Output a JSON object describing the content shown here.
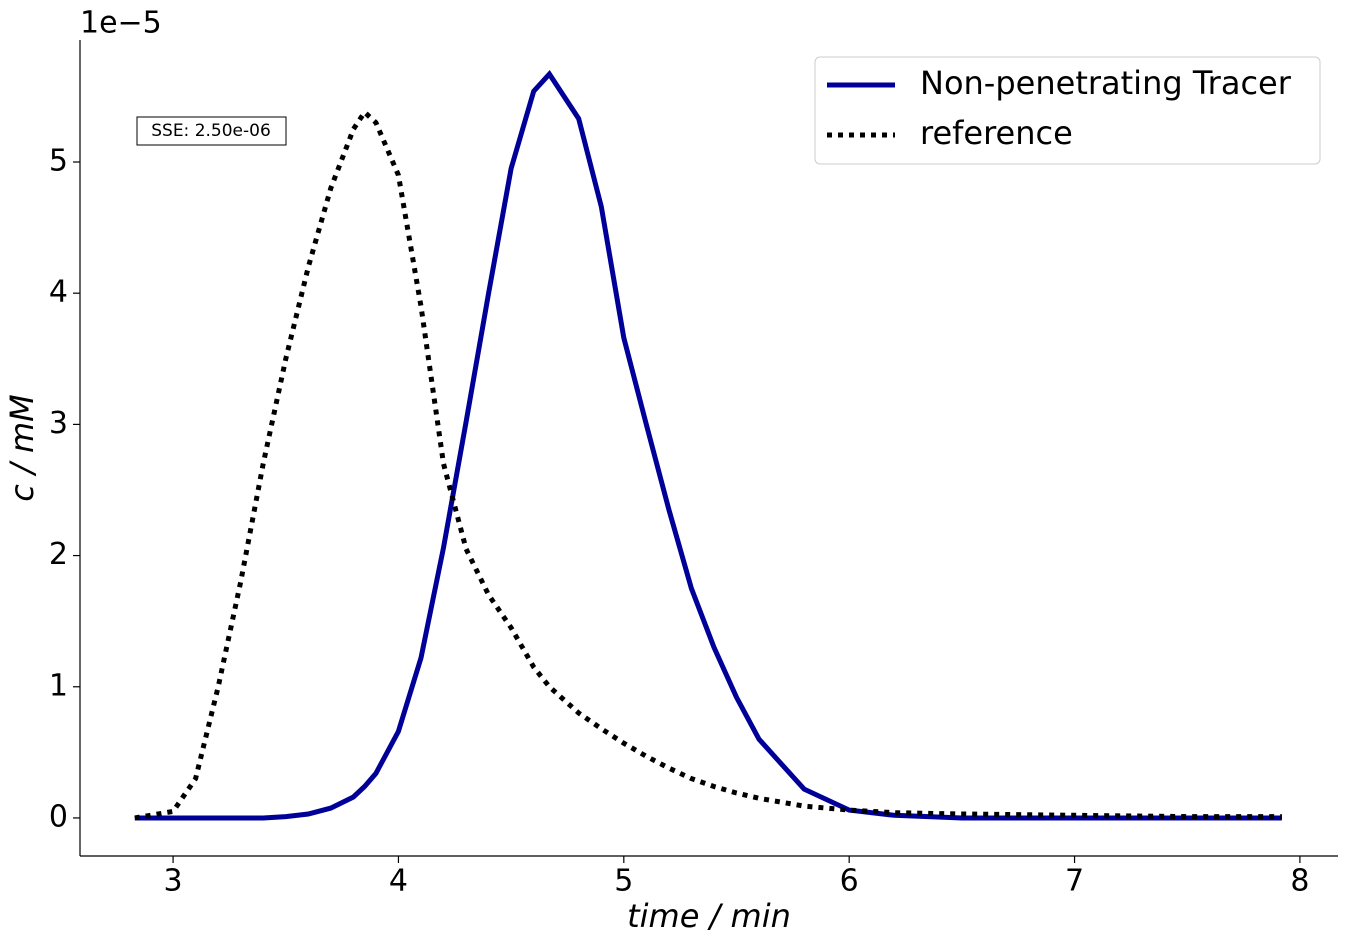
{
  "chart_data": {
    "type": "line",
    "xlabel": "time / min",
    "ylabel": "c / mM",
    "y_offset_label": "1e−5",
    "annotation": "SSE: 2.50e-06",
    "x": [
      2.83,
      3.0,
      3.1,
      3.2,
      3.3,
      3.4,
      3.5,
      3.6,
      3.7,
      3.8,
      3.85,
      3.9,
      4.0,
      4.1,
      4.2,
      4.3,
      4.4,
      4.5,
      4.6,
      4.67,
      4.8,
      4.9,
      5.0,
      5.1,
      5.2,
      5.3,
      5.4,
      5.5,
      5.6,
      5.8,
      6.0,
      6.2,
      6.5,
      7.0,
      7.5,
      7.92
    ],
    "series": [
      {
        "name": "Non-penetrating Tracer",
        "color": "#000099",
        "style": "solid",
        "values": [
          0,
          0,
          0,
          0,
          0,
          0,
          0.01,
          0.03,
          0.075,
          0.16,
          0.24,
          0.34,
          0.66,
          1.22,
          2.06,
          3.02,
          4.0,
          4.95,
          5.54,
          5.67,
          5.33,
          4.66,
          3.66,
          3.0,
          2.35,
          1.75,
          1.3,
          0.92,
          0.6,
          0.22,
          0.06,
          0.02,
          0,
          0,
          0,
          0
        ]
      },
      {
        "name": "reference",
        "color": "#000000",
        "style": "dotted",
        "values": [
          0,
          0.05,
          0.3,
          1.0,
          1.8,
          2.7,
          3.5,
          4.2,
          4.8,
          5.25,
          5.38,
          5.3,
          4.9,
          3.9,
          2.7,
          2.05,
          1.7,
          1.45,
          1.15,
          1.0,
          0.8,
          0.68,
          0.57,
          0.47,
          0.38,
          0.3,
          0.24,
          0.19,
          0.15,
          0.09,
          0.06,
          0.04,
          0.03,
          0.02,
          0.01,
          0.01
        ]
      }
    ],
    "xlim": [
      2.587,
      8.169
    ],
    "xticks": [
      3,
      4,
      5,
      6,
      7,
      8
    ],
    "ylim": [
      -0.29,
      5.93
    ],
    "yticks": [
      0,
      1,
      2,
      3,
      4,
      5
    ],
    "grid": false,
    "legend": "upper right"
  }
}
